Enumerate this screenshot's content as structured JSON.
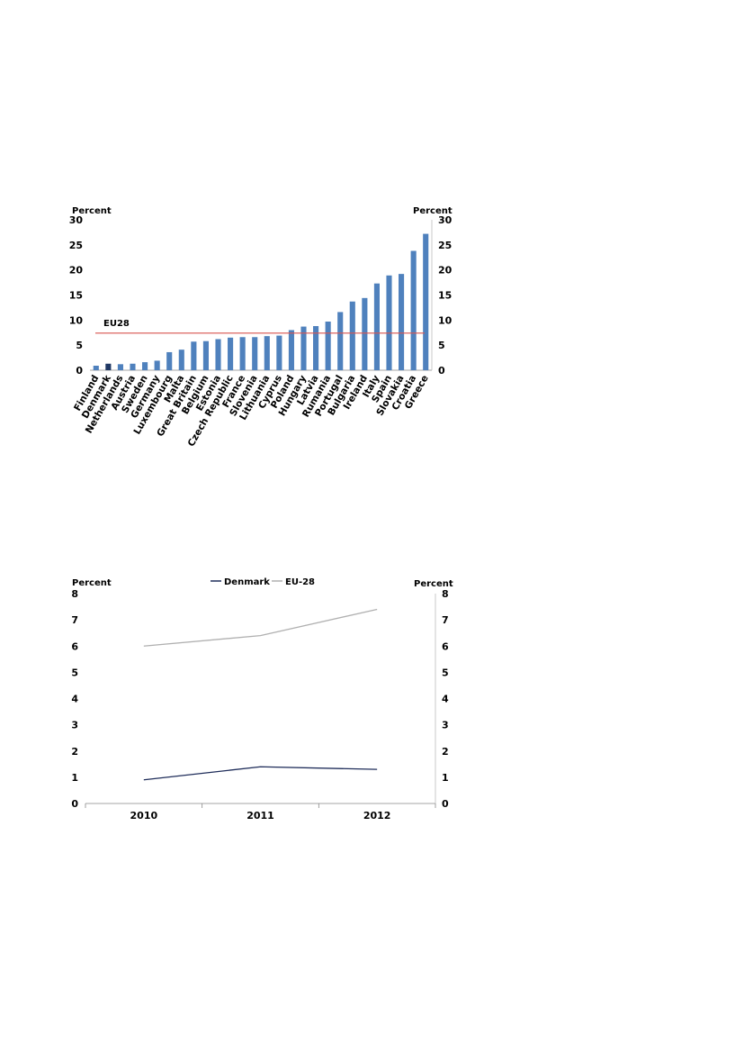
{
  "chart_data": [
    {
      "type": "bar",
      "left_axis_label": "Percent",
      "right_axis_label": "Percent",
      "ylim": [
        0,
        30
      ],
      "yticks": [
        0,
        5,
        10,
        15,
        20,
        25,
        30
      ],
      "grid": false,
      "categories": [
        "Finland",
        "Denmark",
        "Netherlands",
        "Austria",
        "Sweden",
        "Germany",
        "Luxembourg",
        "Malta",
        "Great Britain",
        "Belgium",
        "Estonia",
        "Czech Republic",
        "France",
        "Slovenia",
        "Lithuania",
        "Cyprus",
        "Poland",
        "Hungary",
        "Latvia",
        "Rumania",
        "Portugal",
        "Bulgaria",
        "Ireland",
        "Italy",
        "Spain",
        "Slovakia",
        "Croatia",
        "Greece"
      ],
      "values": [
        0.9,
        1.3,
        1.2,
        1.3,
        1.6,
        1.9,
        3.6,
        4.1,
        5.7,
        5.8,
        6.2,
        6.5,
        6.6,
        6.6,
        6.8,
        6.9,
        8.0,
        8.7,
        8.8,
        9.7,
        11.6,
        13.7,
        14.4,
        17.3,
        18.9,
        19.2,
        23.8,
        27.2
      ],
      "highlight_category": "Denmark",
      "bar_color": "#4f81bd",
      "highlight_color": "#1f3864",
      "reference_line": {
        "label": "EU28",
        "value": 7.4,
        "color": "#d9534f"
      }
    },
    {
      "type": "line",
      "left_axis_label": "Percent",
      "right_axis_label": "Percent",
      "ylim": [
        0,
        8
      ],
      "yticks": [
        0,
        1,
        2,
        3,
        4,
        5,
        6,
        7,
        8
      ],
      "grid": false,
      "legend_position": "top-center",
      "categories": [
        "2010",
        "2011",
        "2012"
      ],
      "series": [
        {
          "name": "Denmark",
          "values": [
            0.9,
            1.4,
            1.3
          ],
          "color": "#1f2d5a"
        },
        {
          "name": "EU-28",
          "values": [
            6.0,
            6.4,
            7.4
          ],
          "color": "#b0b0b0"
        }
      ]
    }
  ]
}
